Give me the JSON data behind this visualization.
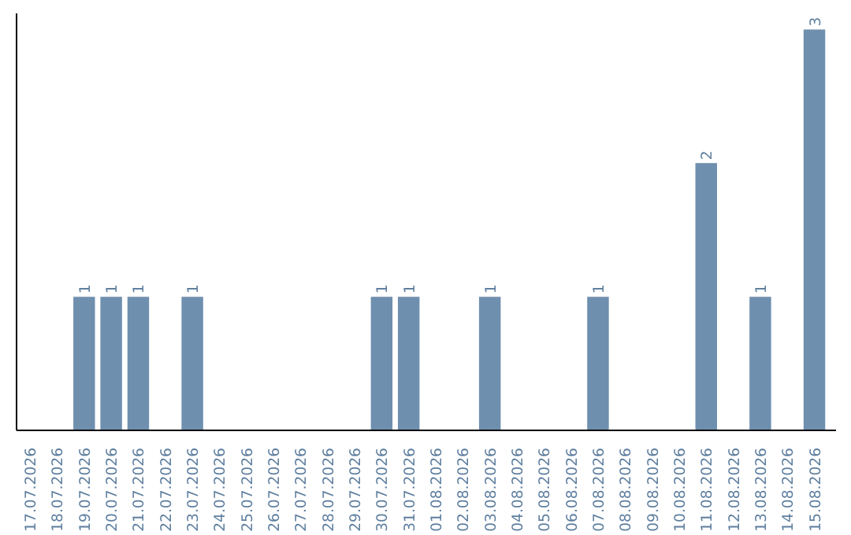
{
  "chart_data": {
    "type": "bar",
    "categories": [
      "17.07.2026",
      "18.07.2026",
      "19.07.2026",
      "20.07.2026",
      "21.07.2026",
      "22.07.2026",
      "23.07.2026",
      "24.07.2026",
      "25.07.2026",
      "26.07.2026",
      "27.07.2026",
      "28.07.2026",
      "29.07.2026",
      "30.07.2026",
      "31.07.2026",
      "01.08.2026",
      "02.08.2026",
      "03.08.2026",
      "04.08.2026",
      "05.08.2026",
      "06.08.2026",
      "07.08.2026",
      "08.08.2026",
      "09.08.2026",
      "10.08.2026",
      "11.08.2026",
      "12.08.2026",
      "13.08.2026",
      "14.08.2026",
      "15.08.2026"
    ],
    "values": [
      0,
      0,
      1,
      1,
      1,
      0,
      1,
      0,
      0,
      0,
      0,
      0,
      0,
      1,
      1,
      0,
      0,
      1,
      0,
      0,
      0,
      1,
      0,
      0,
      0,
      2,
      0,
      1,
      0,
      3
    ],
    "value_labels": [
      null,
      null,
      "1",
      "1",
      "1",
      null,
      "1",
      null,
      null,
      null,
      null,
      null,
      null,
      "1",
      "1",
      null,
      null,
      "1",
      null,
      null,
      null,
      "1",
      null,
      null,
      null,
      "2",
      null,
      "1",
      null,
      "3"
    ],
    "color": "#6f8faf",
    "grid": false,
    "tick_labels": "x"
  }
}
